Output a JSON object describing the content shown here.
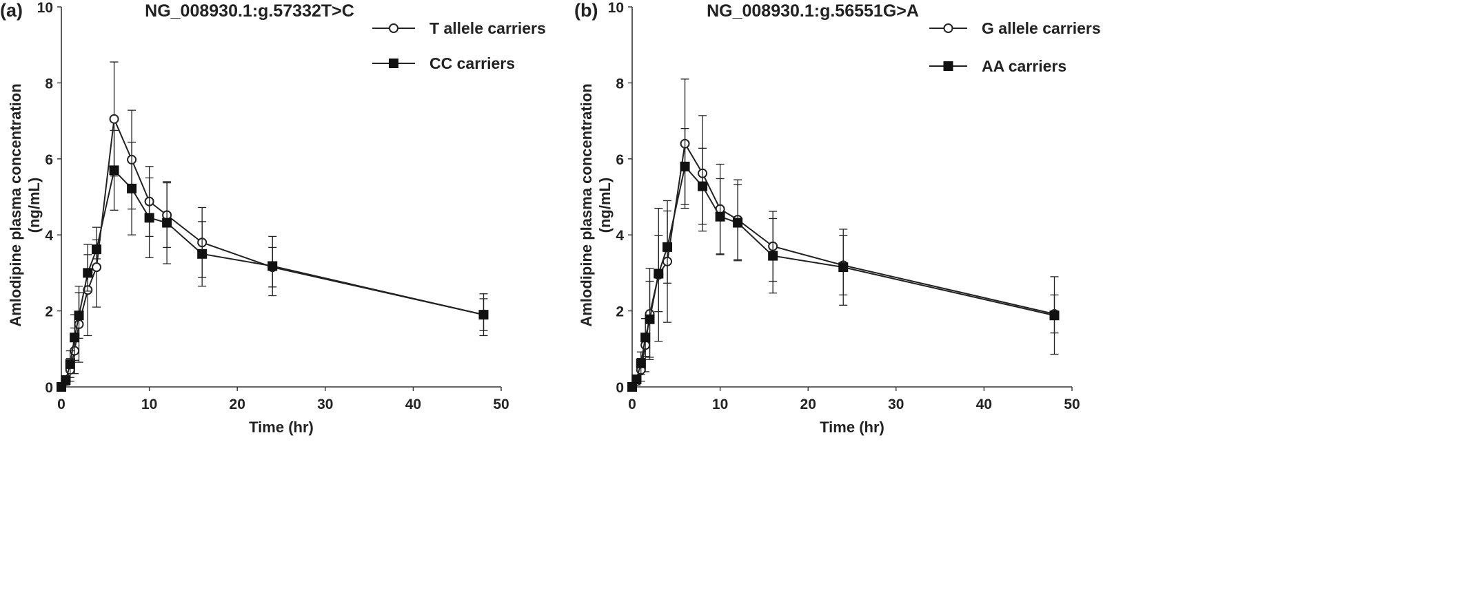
{
  "chart_data": [
    {
      "type": "line",
      "panel_label": "(a)",
      "title": "NG_008930.1:g.57332T>C",
      "xlabel": "Time (hr)",
      "ylabel_line1": "Amlodipine plasma concentration",
      "ylabel_line2": "(ng/mL)",
      "xlim": [
        0,
        50
      ],
      "ylim": [
        0,
        10
      ],
      "xticks": [
        "0",
        "10",
        "20",
        "30",
        "40",
        "50"
      ],
      "yticks": [
        "0",
        "2",
        "4",
        "6",
        "8",
        "10"
      ],
      "grid": false,
      "legend_position": "top-right",
      "series": [
        {
          "name": "T allele carriers",
          "marker": "open-circle",
          "x": [
            0,
            0.5,
            1,
            1.5,
            2,
            3,
            4,
            6,
            8,
            10,
            12,
            16,
            24,
            48
          ],
          "y": [
            0,
            0.15,
            0.45,
            0.95,
            1.65,
            2.55,
            3.15,
            7.05,
            5.98,
            4.88,
            4.52,
            3.8,
            3.15,
            1.9
          ],
          "err": [
            0,
            0.1,
            0.3,
            0.6,
            1.0,
            1.2,
            1.05,
            1.5,
            1.3,
            0.92,
            0.85,
            0.92,
            0.52,
            0.42
          ]
        },
        {
          "name": "CC carriers",
          "marker": "filled-square",
          "x": [
            0,
            0.5,
            1,
            1.5,
            2,
            3,
            4,
            6,
            8,
            10,
            12,
            16,
            24,
            48
          ],
          "y": [
            0,
            0.18,
            0.6,
            1.3,
            1.88,
            3.0,
            3.62,
            5.7,
            5.22,
            4.45,
            4.32,
            3.5,
            3.18,
            1.9
          ],
          "err": [
            0,
            0.1,
            0.35,
            0.6,
            0.6,
            0.48,
            0.25,
            1.05,
            1.22,
            1.05,
            1.08,
            0.85,
            0.78,
            0.55
          ]
        }
      ]
    },
    {
      "type": "line",
      "panel_label": "(b)",
      "title": "NG_008930.1:g.56551G>A",
      "xlabel": "Time (hr)",
      "ylabel_line1": "Amlodipine plasma concentration",
      "ylabel_line2": "(ng/mL)",
      "xlim": [
        0,
        50
      ],
      "ylim": [
        0,
        10
      ],
      "xticks": [
        "0",
        "10",
        "20",
        "30",
        "40",
        "50"
      ],
      "yticks": [
        "0",
        "2",
        "4",
        "6",
        "8",
        "10"
      ],
      "grid": false,
      "legend_position": "top-right",
      "series": [
        {
          "name": "G allele carriers",
          "marker": "open-circle",
          "x": [
            0,
            0.5,
            1,
            1.5,
            2,
            3,
            4,
            6,
            8,
            10,
            12,
            16,
            24,
            48
          ],
          "y": [
            0,
            0.15,
            0.45,
            1.1,
            1.92,
            2.95,
            3.3,
            6.4,
            5.62,
            4.68,
            4.4,
            3.7,
            3.2,
            1.92
          ],
          "err": [
            0,
            0.1,
            0.3,
            0.7,
            1.2,
            1.75,
            1.6,
            1.7,
            1.52,
            1.18,
            1.05,
            0.92,
            0.78,
            0.5
          ]
        },
        {
          "name": "AA carriers",
          "marker": "filled-square",
          "x": [
            0,
            0.5,
            1,
            1.5,
            2,
            3,
            4,
            6,
            8,
            10,
            12,
            16,
            24,
            48
          ],
          "y": [
            0,
            0.2,
            0.62,
            1.3,
            1.78,
            2.98,
            3.68,
            5.8,
            5.28,
            4.48,
            4.32,
            3.45,
            3.15,
            1.88
          ],
          "err": [
            0,
            0.1,
            0.3,
            0.5,
            1.0,
            1.0,
            0.95,
            1.0,
            1.0,
            1.0,
            1.0,
            0.98,
            1.0,
            1.02
          ]
        }
      ]
    }
  ]
}
